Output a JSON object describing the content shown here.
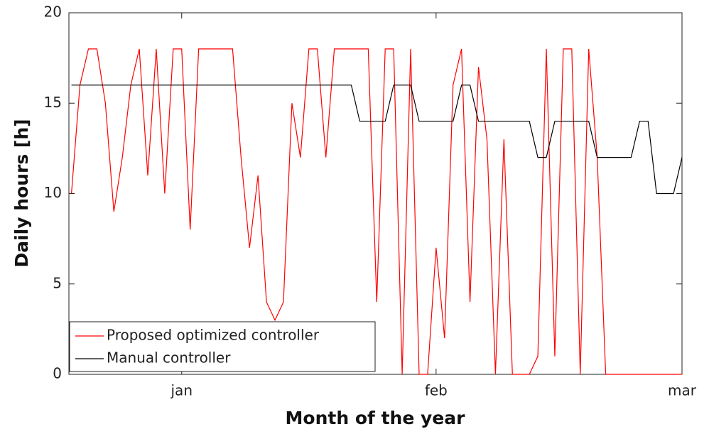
{
  "chart_data": {
    "type": "line",
    "xlabel": "Month of the year",
    "ylabel": "Daily hours [h]",
    "x": [
      -14,
      -13,
      -12,
      -11,
      -10,
      -9,
      -8,
      -7,
      -6,
      -5,
      -4,
      -3,
      -2,
      -1,
      0,
      1,
      2,
      3,
      4,
      5,
      6,
      7,
      8,
      9,
      10,
      11,
      12,
      13,
      14,
      15,
      16,
      17,
      18,
      19,
      20,
      21,
      22,
      23,
      24,
      25,
      26,
      27,
      28,
      29,
      30,
      31,
      32,
      33,
      34,
      35,
      36,
      37,
      38,
      39,
      40,
      41,
      42,
      43,
      44,
      45,
      46,
      47,
      48,
      49,
      50,
      51,
      52,
      53,
      54,
      55,
      56,
      57,
      58
    ],
    "series": [
      {
        "name": "Proposed optimized controller",
        "color": "#ff0000",
        "values": [
          10,
          16,
          18,
          18,
          15,
          9,
          12,
          16,
          18,
          11,
          18,
          10,
          18,
          18,
          8,
          18,
          18,
          18,
          18,
          18,
          12,
          7,
          11,
          4,
          3,
          4,
          15,
          12,
          18,
          18,
          12,
          18,
          18,
          18,
          18,
          18,
          4,
          18,
          18,
          0,
          18,
          0,
          0,
          7,
          2,
          16,
          18,
          4,
          17,
          13,
          0,
          13,
          0,
          0,
          0,
          1,
          18,
          1,
          18,
          18,
          0,
          18,
          12,
          0,
          0,
          0,
          0,
          0,
          0,
          0,
          0,
          0,
          0
        ]
      },
      {
        "name": "Manual controller",
        "color": "#000000",
        "values": [
          16,
          16,
          16,
          16,
          16,
          16,
          16,
          16,
          16,
          16,
          16,
          16,
          16,
          16,
          16,
          16,
          16,
          16,
          16,
          16,
          16,
          16,
          16,
          16,
          16,
          16,
          16,
          16,
          16,
          16,
          16,
          16,
          16,
          16,
          14,
          14,
          14,
          14,
          16,
          16,
          16,
          14,
          14,
          14,
          14,
          14,
          16,
          16,
          14,
          14,
          14,
          14,
          14,
          14,
          14,
          12,
          12,
          14,
          14,
          14,
          14,
          14,
          12,
          12,
          12,
          12,
          12,
          14,
          14,
          10,
          10,
          10,
          12
        ]
      }
    ],
    "xlim": [
      -14.3,
      58
    ],
    "xticks": [
      {
        "value": -1,
        "label": "jan"
      },
      {
        "value": 29,
        "label": "feb"
      },
      {
        "value": 58,
        "label": "mar"
      }
    ],
    "ylim": [
      0,
      20
    ],
    "yticks": [
      0,
      5,
      10,
      15,
      20
    ],
    "legend": "lower left"
  }
}
